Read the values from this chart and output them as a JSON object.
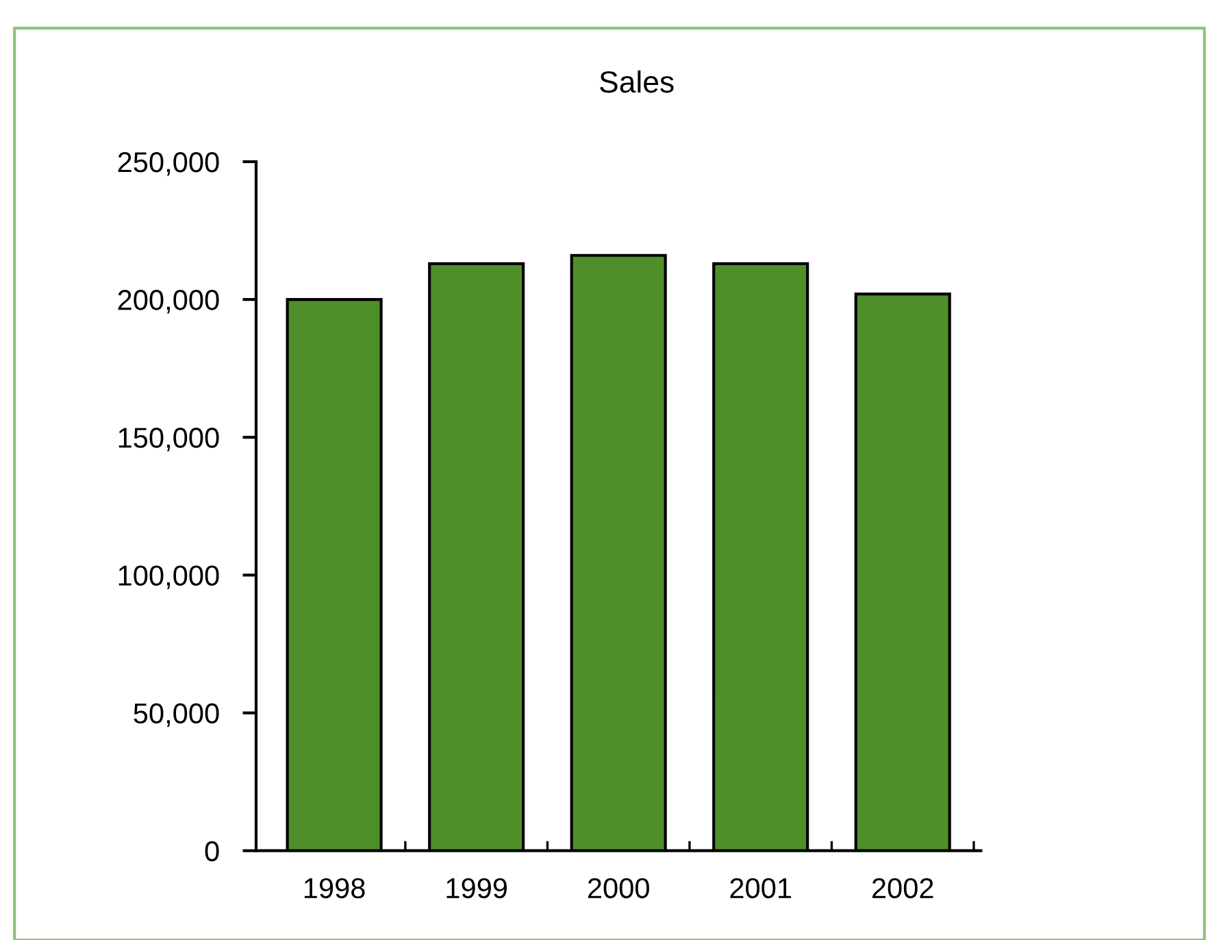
{
  "chart_data": {
    "type": "bar",
    "title": "Sales",
    "categories": [
      "1998",
      "1999",
      "2000",
      "2001",
      "2002"
    ],
    "values": [
      200000,
      213000,
      216000,
      213000,
      202000
    ],
    "color": "#4f8f2a",
    "ylim": [
      0,
      250000
    ],
    "yticks": [
      {
        "value": 0,
        "label": "0"
      },
      {
        "value": 50000,
        "label": "50,000"
      },
      {
        "value": 100000,
        "label": "100,000"
      },
      {
        "value": 150000,
        "label": "150,000"
      },
      {
        "value": 200000,
        "label": "200,000"
      },
      {
        "value": 250000,
        "label": "250,000"
      }
    ],
    "grid": false,
    "legend": false
  }
}
